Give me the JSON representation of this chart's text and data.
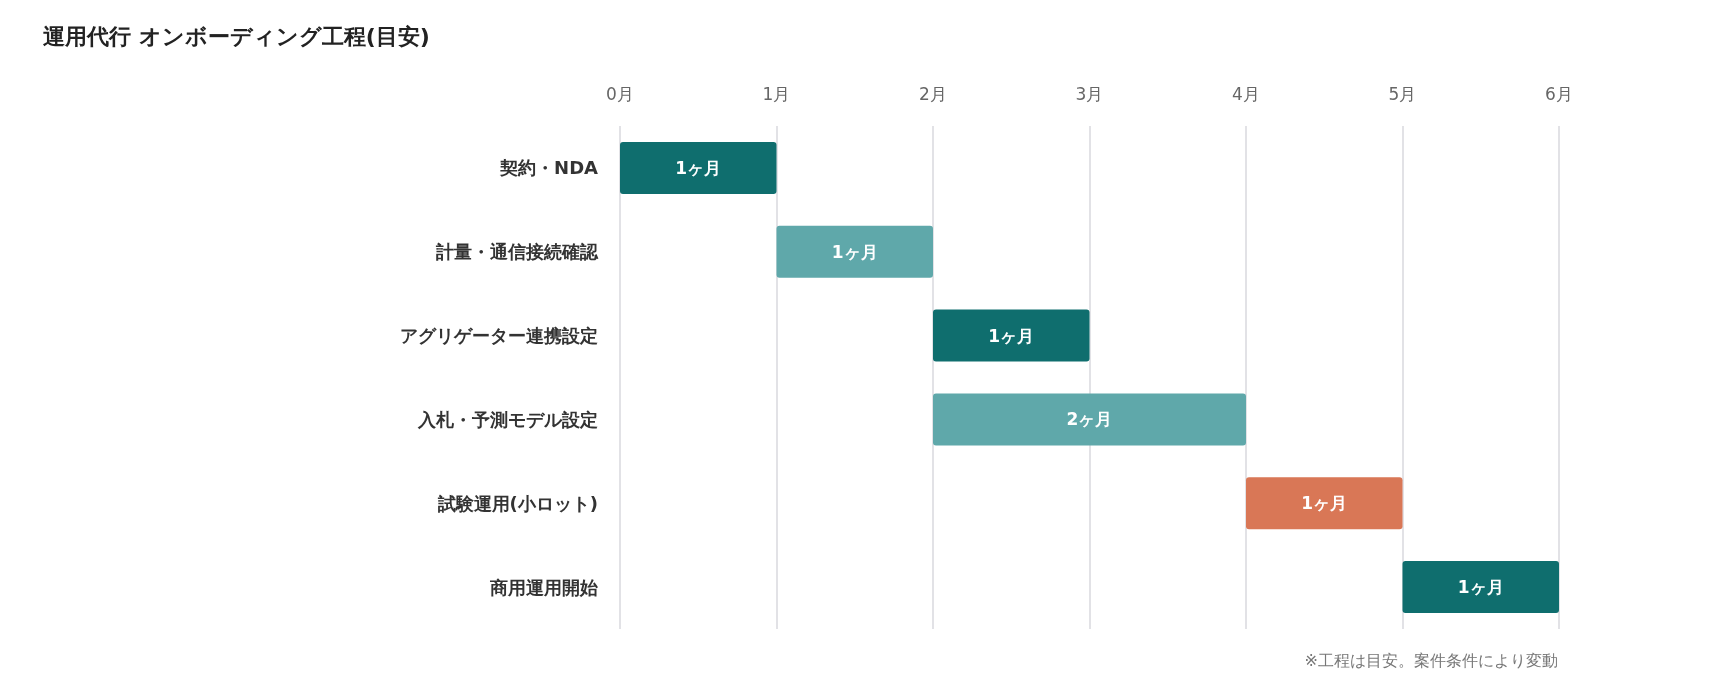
{
  "chart_data": {
    "type": "bar",
    "orientation": "horizontal",
    "title": "運用代行 オンボーディング工程(目安)",
    "categories": [
      "契約・NDA",
      "計量・通信接続確認",
      "アグリゲーター連携設定",
      "入札・予測モデル設定",
      "試験運用(小ロット)",
      "商用運用開始"
    ],
    "base": [
      0,
      1,
      2,
      2,
      4,
      5
    ],
    "values": [
      1,
      1,
      1,
      2,
      1,
      1
    ],
    "colors": [
      "#0f6e6e",
      "#5fa8aa",
      "#0f6e6e",
      "#5fa8aa",
      "#d97756",
      "#0f6e6e"
    ],
    "value_labels": [
      "1ヶ月",
      "1ヶ月",
      "1ヶ月",
      "2ヶ月",
      "1ヶ月",
      "1ヶ月"
    ],
    "xlim": [
      0,
      6
    ],
    "xticks": [
      {
        "value": 0,
        "label": "0月"
      },
      {
        "value": 1,
        "label": "1月"
      },
      {
        "value": 2,
        "label": "2月"
      },
      {
        "value": 3,
        "label": "3月"
      },
      {
        "value": 4,
        "label": "4月"
      },
      {
        "value": 5,
        "label": "5月"
      },
      {
        "value": 6,
        "label": "6月"
      }
    ],
    "grid": "x",
    "annotations": [
      "※工程は目安。案件条件により変動"
    ]
  }
}
